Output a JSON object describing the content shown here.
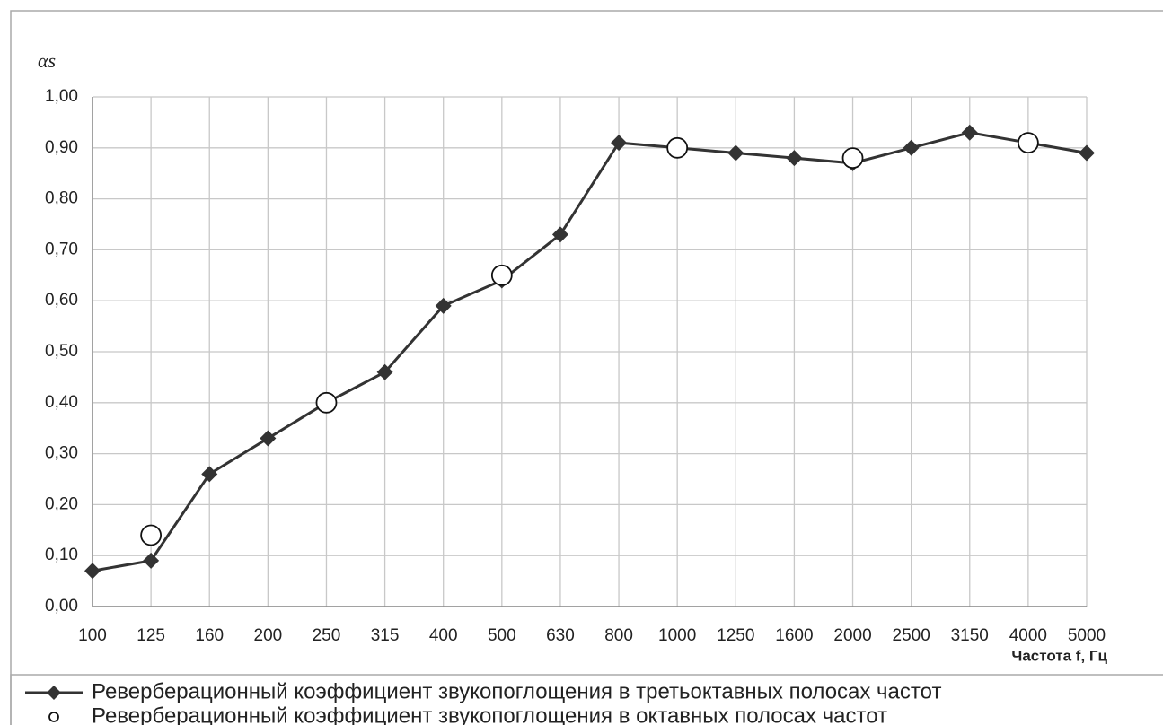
{
  "chart_data": {
    "type": "line",
    "y_label": "αs",
    "x_label": "Частота f, Гц",
    "categories": [
      "100",
      "125",
      "160",
      "200",
      "250",
      "315",
      "400",
      "500",
      "630",
      "800",
      "1000",
      "1250",
      "1600",
      "2000",
      "2500",
      "3150",
      "4000",
      "5000"
    ],
    "series": [
      {
        "name": "Реверберационный коэффициент звукопоглощения в третьоктавных полосах частот",
        "color": "#333333",
        "marker": "diamond",
        "values": [
          0.07,
          0.09,
          0.26,
          0.33,
          0.4,
          0.46,
          0.59,
          0.64,
          0.73,
          0.91,
          0.9,
          0.89,
          0.88,
          0.87,
          0.9,
          0.93,
          0.91,
          0.89
        ]
      },
      {
        "name": "Реверберационный коэффициент звукопоглощения в октавных полосах частот",
        "color": "#111111",
        "marker": "circle",
        "values": [
          null,
          0.14,
          null,
          null,
          0.4,
          null,
          null,
          0.65,
          null,
          null,
          0.9,
          null,
          null,
          0.88,
          null,
          null,
          0.91,
          null
        ]
      }
    ],
    "ylim": [
      0,
      1
    ],
    "yticks": [
      {
        "value": 0,
        "label": "0,00"
      },
      {
        "value": 0.1,
        "label": "0,10"
      },
      {
        "value": 0.2,
        "label": "0,20"
      },
      {
        "value": 0.3,
        "label": "0,30"
      },
      {
        "value": 0.4,
        "label": "0,40"
      },
      {
        "value": 0.5,
        "label": "0,50"
      },
      {
        "value": 0.6,
        "label": "0,60"
      },
      {
        "value": 0.7,
        "label": "0,70"
      },
      {
        "value": 0.8,
        "label": "0,80"
      },
      {
        "value": 0.9,
        "label": "0,90"
      },
      {
        "value": 1,
        "label": "1,00"
      }
    ],
    "grid": true
  }
}
